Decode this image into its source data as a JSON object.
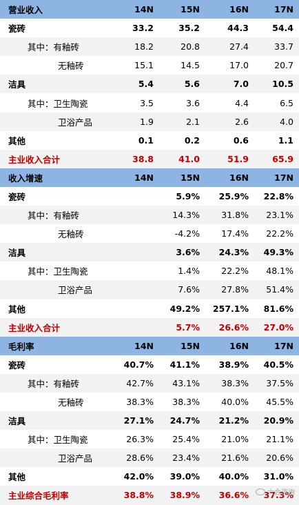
{
  "table": {
    "rows": [
      {
        "style": "header",
        "indent": 0,
        "label": "营业收入",
        "values": [
          "14N",
          "15N",
          "16N",
          "17N"
        ]
      },
      {
        "style": "bold",
        "indent": 0,
        "label": "瓷砖",
        "values": [
          "33.2",
          "35.2",
          "44.3",
          "54.4"
        ]
      },
      {
        "style": "plain",
        "indent": 1,
        "label": "其中：有釉砖",
        "values": [
          "18.2",
          "20.8",
          "27.4",
          "33.7"
        ]
      },
      {
        "style": "plain",
        "indent": 2,
        "label": "无釉砖",
        "values": [
          "15.1",
          "14.5",
          "17.0",
          "20.7"
        ]
      },
      {
        "style": "bold",
        "indent": 0,
        "label": "洁具",
        "values": [
          "5.4",
          "5.6",
          "7.0",
          "10.5"
        ]
      },
      {
        "style": "plain",
        "indent": 1,
        "label": "其中：卫生陶瓷",
        "values": [
          "3.5",
          "3.6",
          "4.4",
          "6.5"
        ]
      },
      {
        "style": "plain",
        "indent": 2,
        "label": "卫浴产品",
        "values": [
          "1.9",
          "2.1",
          "2.6",
          "4.0"
        ]
      },
      {
        "style": "bold",
        "indent": 0,
        "label": "其他",
        "values": [
          "0.1",
          "0.2",
          "0.6",
          "1.1"
        ]
      },
      {
        "style": "total",
        "indent": 0,
        "label": "主业收入合计",
        "values": [
          "38.8",
          "41.0",
          "51.9",
          "65.9"
        ]
      },
      {
        "style": "header",
        "indent": 0,
        "label": "收入增速",
        "values": [
          "14N",
          "15N",
          "16N",
          "17N"
        ]
      },
      {
        "style": "bold",
        "indent": 0,
        "label": "瓷砖",
        "values": [
          "",
          "5.9%",
          "25.9%",
          "22.8%"
        ]
      },
      {
        "style": "plain",
        "indent": 1,
        "label": "其中：有釉砖",
        "values": [
          "",
          "14.3%",
          "31.8%",
          "23.1%"
        ]
      },
      {
        "style": "plain",
        "indent": 2,
        "label": "无釉砖",
        "values": [
          "",
          "-4.2%",
          "17.4%",
          "22.2%"
        ]
      },
      {
        "style": "bold",
        "indent": 0,
        "label": "洁具",
        "values": [
          "",
          "3.6%",
          "24.3%",
          "49.3%"
        ]
      },
      {
        "style": "plain",
        "indent": 1,
        "label": "其中：卫生陶瓷",
        "values": [
          "",
          "1.4%",
          "22.2%",
          "48.1%"
        ]
      },
      {
        "style": "plain",
        "indent": 2,
        "label": "卫浴产品",
        "values": [
          "",
          "7.6%",
          "27.8%",
          "51.4%"
        ]
      },
      {
        "style": "bold",
        "indent": 0,
        "label": "其他",
        "values": [
          "",
          "49.2%",
          "257.1%",
          "81.6%"
        ]
      },
      {
        "style": "total",
        "indent": 0,
        "label": "主业收入合计",
        "values": [
          "",
          "5.7%",
          "26.6%",
          "27.0%"
        ]
      },
      {
        "style": "header",
        "indent": 0,
        "label": "毛利率",
        "values": [
          "14N",
          "15N",
          "16N",
          "17N"
        ]
      },
      {
        "style": "bold",
        "indent": 0,
        "label": "瓷砖",
        "values": [
          "40.7%",
          "41.1%",
          "38.9%",
          "40.5%"
        ]
      },
      {
        "style": "plain",
        "indent": 1,
        "label": "其中：有釉砖",
        "values": [
          "42.7%",
          "43.1%",
          "38.3%",
          "37.5%"
        ]
      },
      {
        "style": "plain",
        "indent": 2,
        "label": "无釉砖",
        "values": [
          "38.3%",
          "38.3%",
          "40.0%",
          "45.5%"
        ]
      },
      {
        "style": "bold",
        "indent": 0,
        "label": "洁具",
        "values": [
          "27.1%",
          "24.7%",
          "21.2%",
          "20.9%"
        ]
      },
      {
        "style": "plain",
        "indent": 1,
        "label": "其中：卫生陶瓷",
        "values": [
          "26.3%",
          "25.4%",
          "21.0%",
          "21.1%"
        ]
      },
      {
        "style": "plain",
        "indent": 2,
        "label": "卫浴产品",
        "values": [
          "28.6%",
          "23.4%",
          "21.6%",
          "20.6%"
        ]
      },
      {
        "style": "bold",
        "indent": 0,
        "label": "其他",
        "values": [
          "42.0%",
          "39.0%",
          "40.0%",
          "31.0%"
        ]
      },
      {
        "style": "total",
        "indent": 0,
        "label": "主业综合毛利率",
        "values": [
          "38.8%",
          "38.9%",
          "36.6%",
          "37.3%"
        ]
      }
    ]
  },
  "watermark": {
    "text": "六合咨询"
  },
  "colors": {
    "header_bg": "#8db4e2",
    "alt_row_bg": "#f2f2f2",
    "total_text": "#c00000"
  }
}
